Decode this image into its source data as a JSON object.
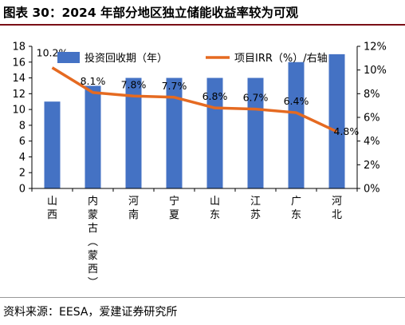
{
  "figure": {
    "title": "图表 30：2024 年部分地区独立储能收益率较为可观",
    "source": "资料来源：EESA，爱建证券研究所"
  },
  "colors": {
    "bar": "#4472c4",
    "line": "#e56a21",
    "title_rule": "#7a0f16"
  },
  "chart_data": {
    "type": "bar",
    "categories": [
      "山西",
      "内蒙古（蒙西）",
      "河南",
      "宁夏",
      "山东",
      "江苏",
      "广东",
      "河北"
    ],
    "category_label_lines": [
      [
        "山",
        "西"
      ],
      [
        "内",
        "蒙",
        "古",
        "︵",
        "蒙",
        "西",
        "︶"
      ],
      [
        "河",
        "南"
      ],
      [
        "宁",
        "夏"
      ],
      [
        "山",
        "东"
      ],
      [
        "江",
        "苏"
      ],
      [
        "广",
        "东"
      ],
      [
        "河",
        "北"
      ]
    ],
    "series": [
      {
        "name": "投资回收期（年）",
        "type": "bar",
        "axis": "left",
        "values": [
          11,
          13,
          14,
          14,
          14,
          14,
          16,
          17
        ]
      },
      {
        "name": "项目IRR（%）/右轴",
        "type": "line",
        "axis": "right",
        "values": [
          10.2,
          8.1,
          7.8,
          7.7,
          6.8,
          6.7,
          6.4,
          4.8
        ],
        "labels": [
          "10.2%",
          "8.1%",
          "7.8%",
          "7.7%",
          "6.8%",
          "6.7%",
          "6.4%",
          "4.8%"
        ]
      }
    ],
    "y_left": {
      "min": 0,
      "max": 18,
      "step": 2,
      "ticks": [
        "0",
        "2",
        "4",
        "6",
        "8",
        "10",
        "12",
        "14",
        "16",
        "18"
      ]
    },
    "y_right": {
      "min": 0,
      "max": 12,
      "step": 2,
      "ticks": [
        "0%",
        "2%",
        "4%",
        "6%",
        "8%",
        "10%",
        "12%"
      ]
    },
    "legend_position": "top",
    "grid": false
  }
}
